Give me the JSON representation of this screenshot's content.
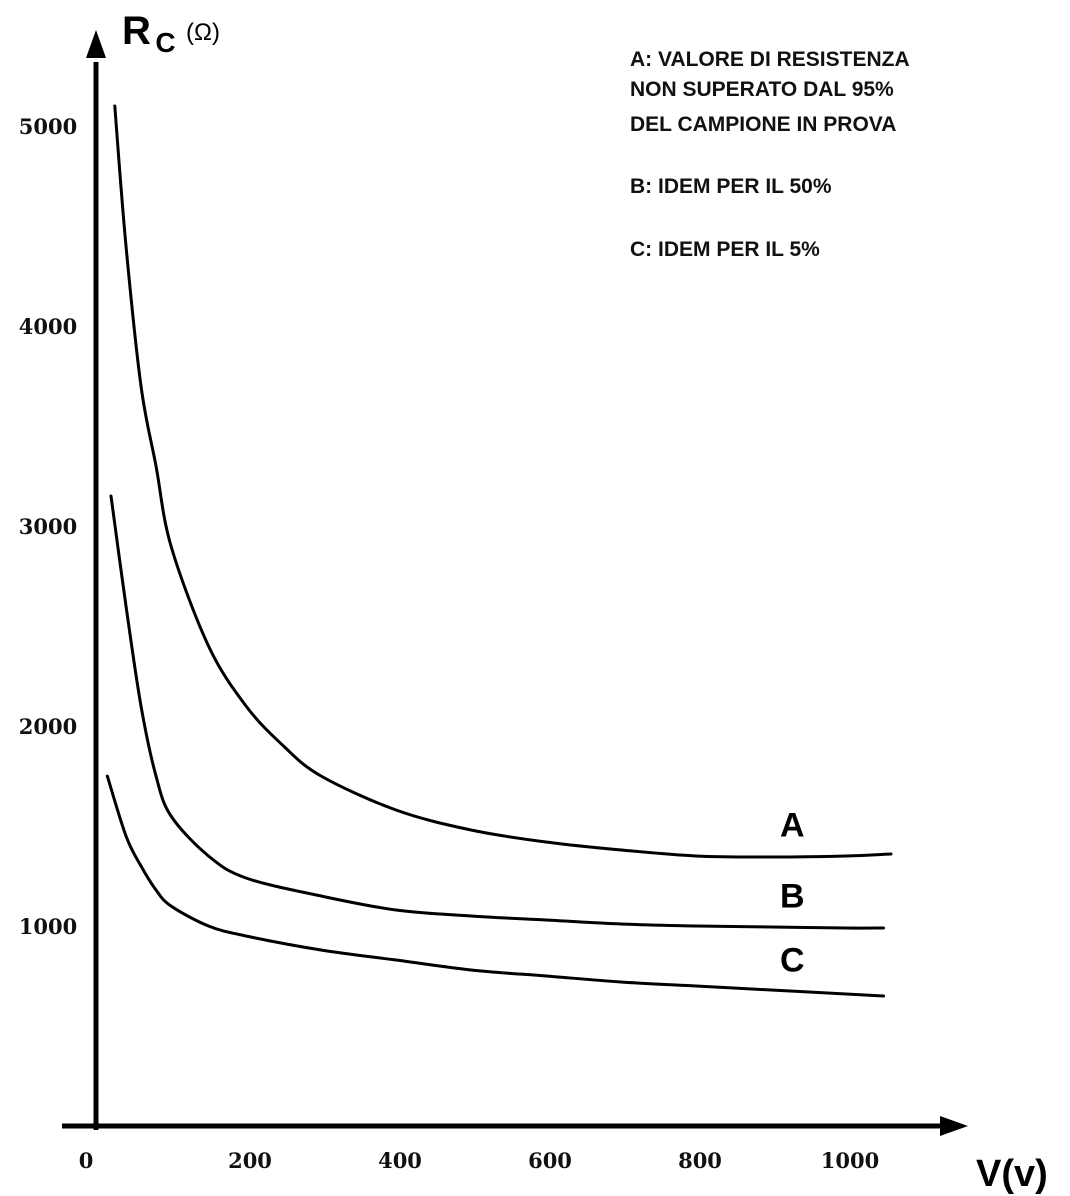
{
  "chart_data": {
    "type": "line",
    "ylabel_main": "R",
    "ylabel_sub": "C",
    "ylabel_unit": "(Ω)",
    "xlabel": "V(v)",
    "xlim": [
      0,
      1100
    ],
    "ylim": [
      0,
      5000
    ],
    "x_ticks": [
      "0",
      "200",
      "400",
      "600",
      "800",
      "1000"
    ],
    "y_ticks": [
      "5000",
      "4000",
      "3000",
      "2000",
      "1000"
    ],
    "grid": false,
    "legend_text": [
      "A: VALORE DI RESISTENZA",
      "NON SUPERATO DAL 95%",
      "DEL CAMPIONE IN PROVA",
      "B: IDEM PER IL 50%",
      "C: IDEM PER IL 5%"
    ],
    "series": [
      {
        "name": "A",
        "x": [
          25,
          40,
          60,
          80,
          100,
          150,
          200,
          250,
          300,
          400,
          500,
          600,
          700,
          800,
          900,
          1000,
          1060
        ],
        "y": [
          5100,
          4400,
          3700,
          3300,
          2900,
          2400,
          2100,
          1900,
          1750,
          1580,
          1480,
          1420,
          1380,
          1350,
          1345,
          1350,
          1360
        ]
      },
      {
        "name": "B",
        "x": [
          20,
          40,
          60,
          80,
          100,
          150,
          200,
          300,
          400,
          500,
          600,
          700,
          800,
          900,
          1000,
          1050
        ],
        "y": [
          3150,
          2600,
          2100,
          1750,
          1550,
          1350,
          1240,
          1150,
          1080,
          1050,
          1030,
          1010,
          1000,
          995,
          990,
          990
        ]
      },
      {
        "name": "C",
        "x": [
          15,
          40,
          60,
          80,
          100,
          150,
          200,
          300,
          400,
          500,
          600,
          700,
          800,
          900,
          1000,
          1050
        ],
        "y": [
          1750,
          1450,
          1300,
          1180,
          1100,
          1000,
          950,
          880,
          830,
          780,
          750,
          720,
          700,
          680,
          660,
          650
        ]
      }
    ]
  }
}
